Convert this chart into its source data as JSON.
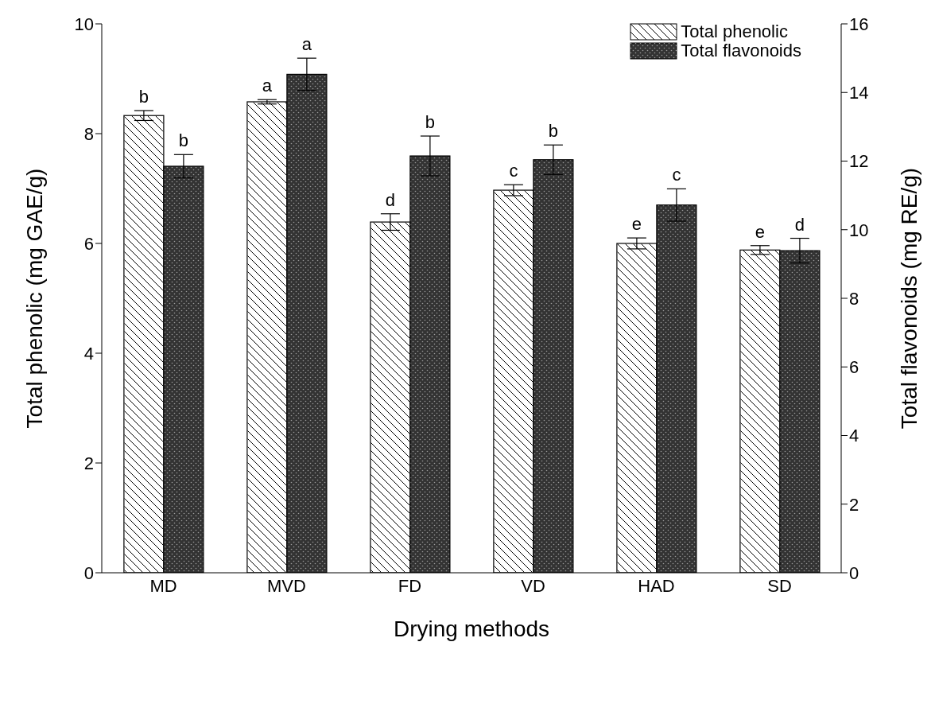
{
  "chart_data": {
    "type": "bar",
    "xlabel": "Drying methods",
    "ylabel": "Total phenolic (mg GAE/g)",
    "y2label": "Total flavonoids (mg RE/g)",
    "categories": [
      "MD",
      "MVD",
      "FD",
      "VD",
      "HAD",
      "SD"
    ],
    "series": [
      {
        "name": "Total phenolic",
        "color": "#ffffff",
        "values": [
          8.33,
          8.58,
          6.39,
          6.97,
          6.0,
          5.88
        ],
        "errors": [
          0.09,
          0.04,
          0.15,
          0.1,
          0.1,
          0.08
        ],
        "value_labels": [
          "b",
          "a",
          "d",
          "c",
          "e",
          "e"
        ]
      },
      {
        "name": "Total flavonoids",
        "color": "#333333",
        "axis": "y2",
        "values": [
          11.85,
          14.53,
          12.15,
          12.04,
          10.72,
          9.39
        ],
        "errors": [
          0.34,
          0.47,
          0.58,
          0.43,
          0.47,
          0.36
        ],
        "value_labels": [
          "b",
          "a",
          "b",
          "b",
          "c",
          "d"
        ]
      }
    ],
    "ylim": [
      0,
      10
    ],
    "yticks": [
      0,
      2,
      4,
      6,
      8,
      10
    ],
    "y2lim": [
      0,
      16
    ],
    "y2ticks": [
      0,
      2,
      4,
      6,
      8,
      10,
      12,
      14,
      16
    ],
    "grid": false,
    "legend": "top right"
  }
}
